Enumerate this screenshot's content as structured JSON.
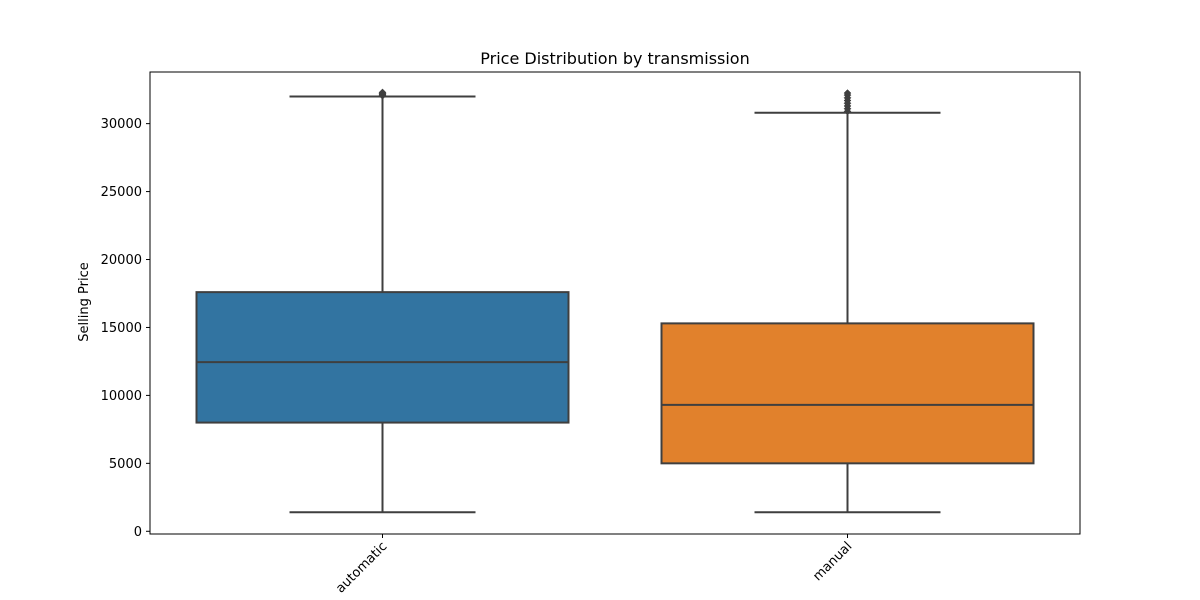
{
  "chart_data": {
    "type": "box",
    "title": "Price Distribution by transmission",
    "xlabel": "",
    "ylabel": "Selling Price",
    "categories": [
      "automatic",
      "manual"
    ],
    "ylim": [
      -200,
      33800
    ],
    "yticks": [
      0,
      5000,
      10000,
      15000,
      20000,
      25000,
      30000
    ],
    "ytick_labels": [
      "0",
      "5000",
      "10000",
      "15000",
      "20000",
      "25000",
      "30000"
    ],
    "grid": false,
    "boxes": [
      {
        "category": "automatic",
        "color": "#3274a1",
        "whisker_low": 1400,
        "q1": 8000,
        "median": 12450,
        "q3": 17600,
        "whisker_high": 32000,
        "outliers": [
          32050,
          32100,
          32150,
          32200,
          32250,
          32300
        ]
      },
      {
        "category": "manual",
        "color": "#e1812c",
        "whisker_low": 1400,
        "q1": 5000,
        "median": 9300,
        "q3": 15300,
        "whisker_high": 30800,
        "outliers": [
          30900,
          31100,
          31300,
          31500,
          31700,
          31900,
          32100,
          32250
        ]
      }
    ]
  }
}
